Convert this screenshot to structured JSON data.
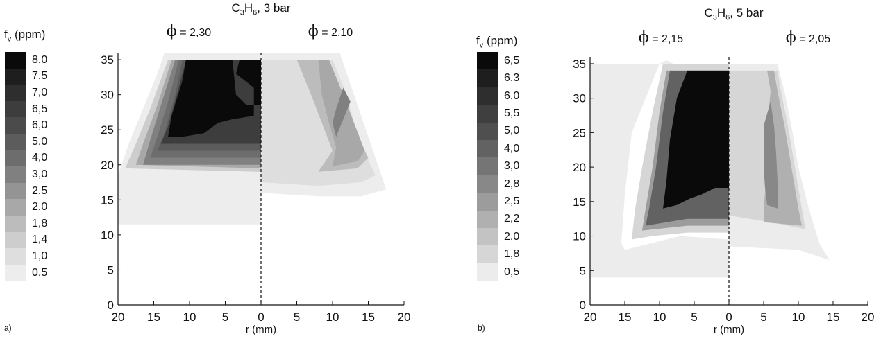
{
  "chart_data": [
    {
      "type": "heatmap",
      "panel_tag": "a)",
      "title_parts": [
        "C",
        "3",
        "H",
        "6",
        ", 3 bar"
      ],
      "legend_title_parts": [
        "f",
        "v",
        " (ppm)"
      ],
      "left_phi_value": "= 2,30",
      "right_phi_value": "= 2,10",
      "xlabel": "r (mm)",
      "x_ticks": [
        "20",
        "15",
        "10",
        "5",
        "0",
        "5",
        "10",
        "15",
        "20"
      ],
      "y_ticks": [
        "0",
        "5",
        "10",
        "15",
        "20",
        "25",
        "30",
        "35"
      ],
      "xlim": [
        -20,
        20
      ],
      "ylim": [
        0,
        36
      ],
      "legend_levels": [
        "8,0",
        "7,5",
        "7,0",
        "6,5",
        "6,0",
        "5,0",
        "4,0",
        "3,0",
        "2,5",
        "2,0",
        "1,8",
        "1,4",
        "1,0",
        "0,5"
      ],
      "legend_colors": [
        "#0a0a0a",
        "#1e1e1e",
        "#2e2e2e",
        "#3d3d3d",
        "#4b4b4b",
        "#5c5c5c",
        "#6d6d6d",
        "#808080",
        "#949494",
        "#a8a8a8",
        "#bcbcbc",
        "#cdcdcd",
        "#dedede",
        "#ededed"
      ],
      "left_contours": [
        {
          "level": "0,5",
          "points": [
            [
              -20,
              11.5
            ],
            [
              -20,
              18.5
            ],
            [
              -18.5,
              23
            ],
            [
              -16.5,
              28
            ],
            [
              -14.5,
              33
            ],
            [
              -13.5,
              36
            ],
            [
              0,
              36
            ],
            [
              0,
              11.5
            ]
          ]
        },
        {
          "level": "1,4",
          "points": [
            [
              -19,
              19.5
            ],
            [
              -17.5,
              23
            ],
            [
              -15.5,
              28
            ],
            [
              -13,
              35
            ],
            [
              0,
              35
            ],
            [
              0,
              19
            ]
          ]
        },
        {
          "level": "2,0",
          "points": [
            [
              -17.5,
              20
            ],
            [
              -16.5,
              23
            ],
            [
              -14.5,
              28.5
            ],
            [
              -12.5,
              35
            ],
            [
              0,
              35
            ],
            [
              0,
              19.5
            ]
          ]
        },
        {
          "level": "3,0",
          "points": [
            [
              -16.5,
              20
            ],
            [
              -15.5,
              23.5
            ],
            [
              -14,
              28.5
            ],
            [
              -12,
              35
            ],
            [
              0,
              35
            ],
            [
              0,
              20
            ]
          ]
        },
        {
          "level": "4,0",
          "points": [
            [
              -15.5,
              21
            ],
            [
              -14.5,
              24
            ],
            [
              -13,
              29
            ],
            [
              -11.5,
              35
            ],
            [
              0,
              35
            ],
            [
              0,
              21
            ]
          ]
        },
        {
          "level": "5,0",
          "points": [
            [
              -14.5,
              22
            ],
            [
              -13.5,
              24.5
            ],
            [
              -12,
              30
            ],
            [
              -11,
              35
            ],
            [
              0,
              35
            ],
            [
              0,
              22
            ]
          ]
        },
        {
          "level": "6,5",
          "points": [
            [
              -14,
              23
            ],
            [
              -13,
              25.5
            ],
            [
              -11.5,
              31
            ],
            [
              -10.5,
              35
            ],
            [
              0,
              35
            ],
            [
              0,
              23
            ]
          ]
        },
        {
          "level": "8,0",
          "points": [
            [
              -13,
              24
            ],
            [
              -12.5,
              27
            ],
            [
              -11,
              32
            ],
            [
              -10.5,
              35
            ],
            [
              -4,
              35
            ],
            [
              -3.5,
              30
            ],
            [
              -2,
              28.5
            ],
            [
              0,
              28.5
            ],
            [
              0,
              35
            ],
            [
              -3,
              35
            ],
            [
              -3.5,
              33
            ],
            [
              -1,
              31
            ],
            [
              -1,
              27
            ],
            [
              -4,
              26.5
            ],
            [
              -6,
              26
            ],
            [
              -8,
              24.5
            ],
            [
              -11,
              24
            ]
          ]
        }
      ],
      "right_contours": [
        {
          "level": "0,5",
          "points": [
            [
              0,
              16
            ],
            [
              8,
              15.5
            ],
            [
              14,
              15.5
            ],
            [
              17.5,
              16.5
            ],
            [
              15,
              24
            ],
            [
              13,
              30
            ],
            [
              11,
              36
            ],
            [
              0,
              36
            ]
          ]
        },
        {
          "level": "1,0",
          "points": [
            [
              0,
              17.5
            ],
            [
              8,
              17
            ],
            [
              14,
              17.5
            ],
            [
              16,
              18.5
            ],
            [
              13.5,
              24
            ],
            [
              12,
              30
            ],
            [
              10,
              35
            ],
            [
              0,
              35
            ]
          ]
        },
        {
          "level": "1,8",
          "points": [
            [
              8,
              19
            ],
            [
              13.5,
              19.5
            ],
            [
              15,
              21
            ],
            [
              12.5,
              26
            ],
            [
              11,
              30
            ],
            [
              9,
              35
            ],
            [
              5,
              35
            ],
            [
              7,
              30
            ],
            [
              8.5,
              26
            ],
            [
              10,
              22
            ]
          ]
        },
        {
          "level": "2,0",
          "points": [
            [
              10,
              19.8
            ],
            [
              13.5,
              20.5
            ],
            [
              14.5,
              22
            ],
            [
              13,
              26
            ],
            [
              11.5,
              30
            ],
            [
              9.5,
              35
            ],
            [
              8,
              35
            ],
            [
              8.5,
              30
            ],
            [
              9.5,
              26
            ],
            [
              10.5,
              22.5
            ]
          ]
        },
        {
          "level": "3,0",
          "points": [
            [
              10.5,
              24
            ],
            [
              11.5,
              26.5
            ],
            [
              12.5,
              29
            ],
            [
              11.5,
              31
            ],
            [
              10.5,
              28
            ],
            [
              10,
              26
            ]
          ]
        }
      ]
    },
    {
      "type": "heatmap",
      "panel_tag": "b)",
      "title_parts": [
        "C",
        "3",
        "H",
        "6",
        ", 5 bar"
      ],
      "legend_title_parts": [
        "f",
        "v",
        " (ppm)"
      ],
      "left_phi_value": "= 2,15",
      "right_phi_value": "= 2,05",
      "xlabel": "r (mm)",
      "x_ticks": [
        "20",
        "15",
        "10",
        "5",
        "0",
        "5",
        "10",
        "15",
        "20"
      ],
      "y_ticks": [
        "0",
        "5",
        "10",
        "15",
        "20",
        "25",
        "30",
        "35"
      ],
      "xlim": [
        -20,
        20
      ],
      "ylim": [
        0,
        36
      ],
      "legend_levels": [
        "6,5",
        "6,3",
        "6,0",
        "5,5",
        "5,0",
        "4,0",
        "3,0",
        "2,8",
        "2,5",
        "2,2",
        "2,0",
        "1,8",
        "0,5"
      ],
      "legend_colors": [
        "#0a0a0a",
        "#1e1e1e",
        "#2e2e2e",
        "#3f3f3f",
        "#4f4f4f",
        "#626262",
        "#757575",
        "#888888",
        "#9c9c9c",
        "#b0b0b0",
        "#c3c3c3",
        "#d6d6d6",
        "#ececec"
      ],
      "left_contours": [
        {
          "level": "0,5",
          "points": [
            [
              -20,
              4
            ],
            [
              -20,
              35
            ],
            [
              -8,
              35
            ],
            [
              -9,
              35.5
            ],
            [
              -10,
              35
            ],
            [
              -14,
              25
            ],
            [
              -15,
              16
            ],
            [
              -15.5,
              9
            ],
            [
              -15,
              8
            ],
            [
              -11,
              9
            ],
            [
              -7,
              10
            ],
            [
              0,
              9.5
            ],
            [
              0,
              4
            ]
          ]
        },
        {
          "level": "1,8",
          "points": [
            [
              -14,
              9.5
            ],
            [
              -13.5,
              14
            ],
            [
              -12.5,
              20
            ],
            [
              -11,
              28
            ],
            [
              -9.5,
              35
            ],
            [
              0,
              35
            ],
            [
              0,
              10.5
            ],
            [
              -6,
              10.5
            ],
            [
              -11,
              10
            ]
          ]
        },
        {
          "level": "2,5",
          "points": [
            [
              -12.5,
              10.8
            ],
            [
              -12,
              14
            ],
            [
              -11,
              20
            ],
            [
              -10,
              28
            ],
            [
              -9,
              34
            ],
            [
              0,
              34
            ],
            [
              0,
              11.5
            ],
            [
              -6,
              11.5
            ]
          ]
        },
        {
          "level": "4,0",
          "points": [
            [
              -12,
              11.5
            ],
            [
              -11.5,
              14
            ],
            [
              -10.5,
              20
            ],
            [
              -9.5,
              28
            ],
            [
              -8.5,
              34
            ],
            [
              0,
              34
            ],
            [
              0,
              12.5
            ],
            [
              -6,
              12.5
            ]
          ]
        },
        {
          "level": "6,5",
          "points": [
            [
              -9.5,
              14
            ],
            [
              -9,
              18
            ],
            [
              -8.5,
              24
            ],
            [
              -7.5,
              30
            ],
            [
              -6,
              34
            ],
            [
              0,
              34
            ],
            [
              0,
              17
            ],
            [
              -2,
              17
            ],
            [
              -4,
              16
            ],
            [
              -5.5,
              15.5
            ],
            [
              -7.5,
              14.5
            ]
          ]
        }
      ],
      "right_contours": [
        {
          "level": "0,5",
          "points": [
            [
              0,
              8.5
            ],
            [
              10,
              8
            ],
            [
              14.5,
              6.5
            ],
            [
              13,
              9
            ],
            [
              11.5,
              14
            ],
            [
              10,
              20
            ],
            [
              9,
              26
            ],
            [
              8,
              31
            ],
            [
              7,
              35
            ],
            [
              0,
              35
            ]
          ]
        },
        {
          "level": "1,8",
          "points": [
            [
              0,
              13
            ],
            [
              6,
              12
            ],
            [
              11,
              11
            ],
            [
              10.5,
              14
            ],
            [
              9.5,
              20
            ],
            [
              8.5,
              26
            ],
            [
              7.5,
              31
            ],
            [
              7,
              34
            ],
            [
              0,
              34
            ]
          ]
        },
        {
          "level": "2,2",
          "points": [
            [
              5,
              12
            ],
            [
              10.5,
              11.5
            ],
            [
              10,
              14
            ],
            [
              9,
              20
            ],
            [
              8,
              26
            ],
            [
              7,
              31
            ],
            [
              6.5,
              34
            ],
            [
              5.5,
              34
            ],
            [
              6,
              31
            ],
            [
              5.5,
              26
            ],
            [
              5.5,
              20
            ],
            [
              5,
              14
            ]
          ]
        },
        {
          "level": "2,8",
          "points": [
            [
              5.5,
              14.5
            ],
            [
              7,
              14
            ],
            [
              7,
              18
            ],
            [
              6.8,
              22
            ],
            [
              6.5,
              26
            ],
            [
              6,
              29.5
            ],
            [
              5,
              26
            ],
            [
              5,
              20
            ],
            [
              5.2,
              17
            ]
          ]
        }
      ]
    }
  ]
}
